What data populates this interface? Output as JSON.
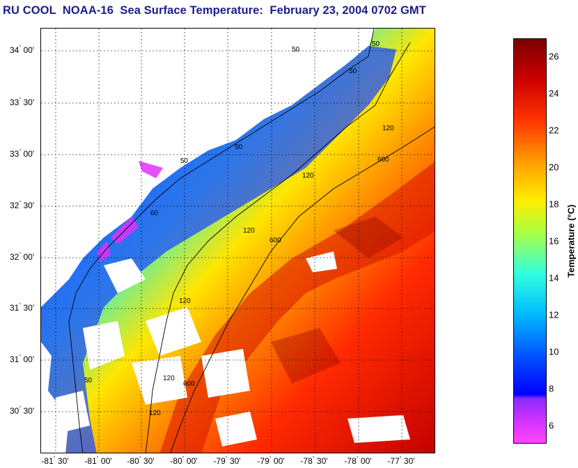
{
  "title": "RU COOL  NOAA-16  Sea Surface Temperature:  February 23, 2004 0702 GMT",
  "map": {
    "lat_labels": [
      {
        "deg": "34",
        "min": "00'"
      },
      {
        "deg": "33",
        "min": "30'"
      },
      {
        "deg": "33",
        "min": "00'"
      },
      {
        "deg": "32",
        "min": "30'"
      },
      {
        "deg": "32",
        "min": "00'"
      },
      {
        "deg": "31",
        "min": "30'"
      },
      {
        "deg": "31",
        "min": "00'"
      },
      {
        "deg": "30",
        "min": "30'"
      }
    ],
    "lon_labels": [
      {
        "deg": "-81",
        "min": "30'"
      },
      {
        "deg": "-81",
        "min": "00'"
      },
      {
        "deg": "-80",
        "min": "30'"
      },
      {
        "deg": "-80",
        "min": "00'"
      },
      {
        "deg": "-79",
        "min": "30'"
      },
      {
        "deg": "-79",
        "min": "00'"
      },
      {
        "deg": "-78",
        "min": "30'"
      },
      {
        "deg": "-78",
        "min": "00'"
      },
      {
        "deg": "-77",
        "min": "30'"
      }
    ],
    "isobath_labels": [
      "50",
      "50",
      "50",
      "50",
      "60",
      "50",
      "50",
      "120",
      "120",
      "120",
      "120",
      "120",
      "120",
      "600",
      "600",
      "600"
    ]
  },
  "colorbar": {
    "label": "Temperature (°C)",
    "ticks": [
      "26",
      "24",
      "22",
      "20",
      "18",
      "16",
      "14",
      "12",
      "10",
      "8",
      "6"
    ],
    "range": [
      5,
      27
    ],
    "colormap": [
      "#ff33ff",
      "#cc22ff",
      "#0000ff",
      "#0066ff",
      "#00ccff",
      "#66ffcc",
      "#ccff33",
      "#ffee00",
      "#ff9900",
      "#ff3300",
      "#cc0000",
      "#800000"
    ]
  }
}
